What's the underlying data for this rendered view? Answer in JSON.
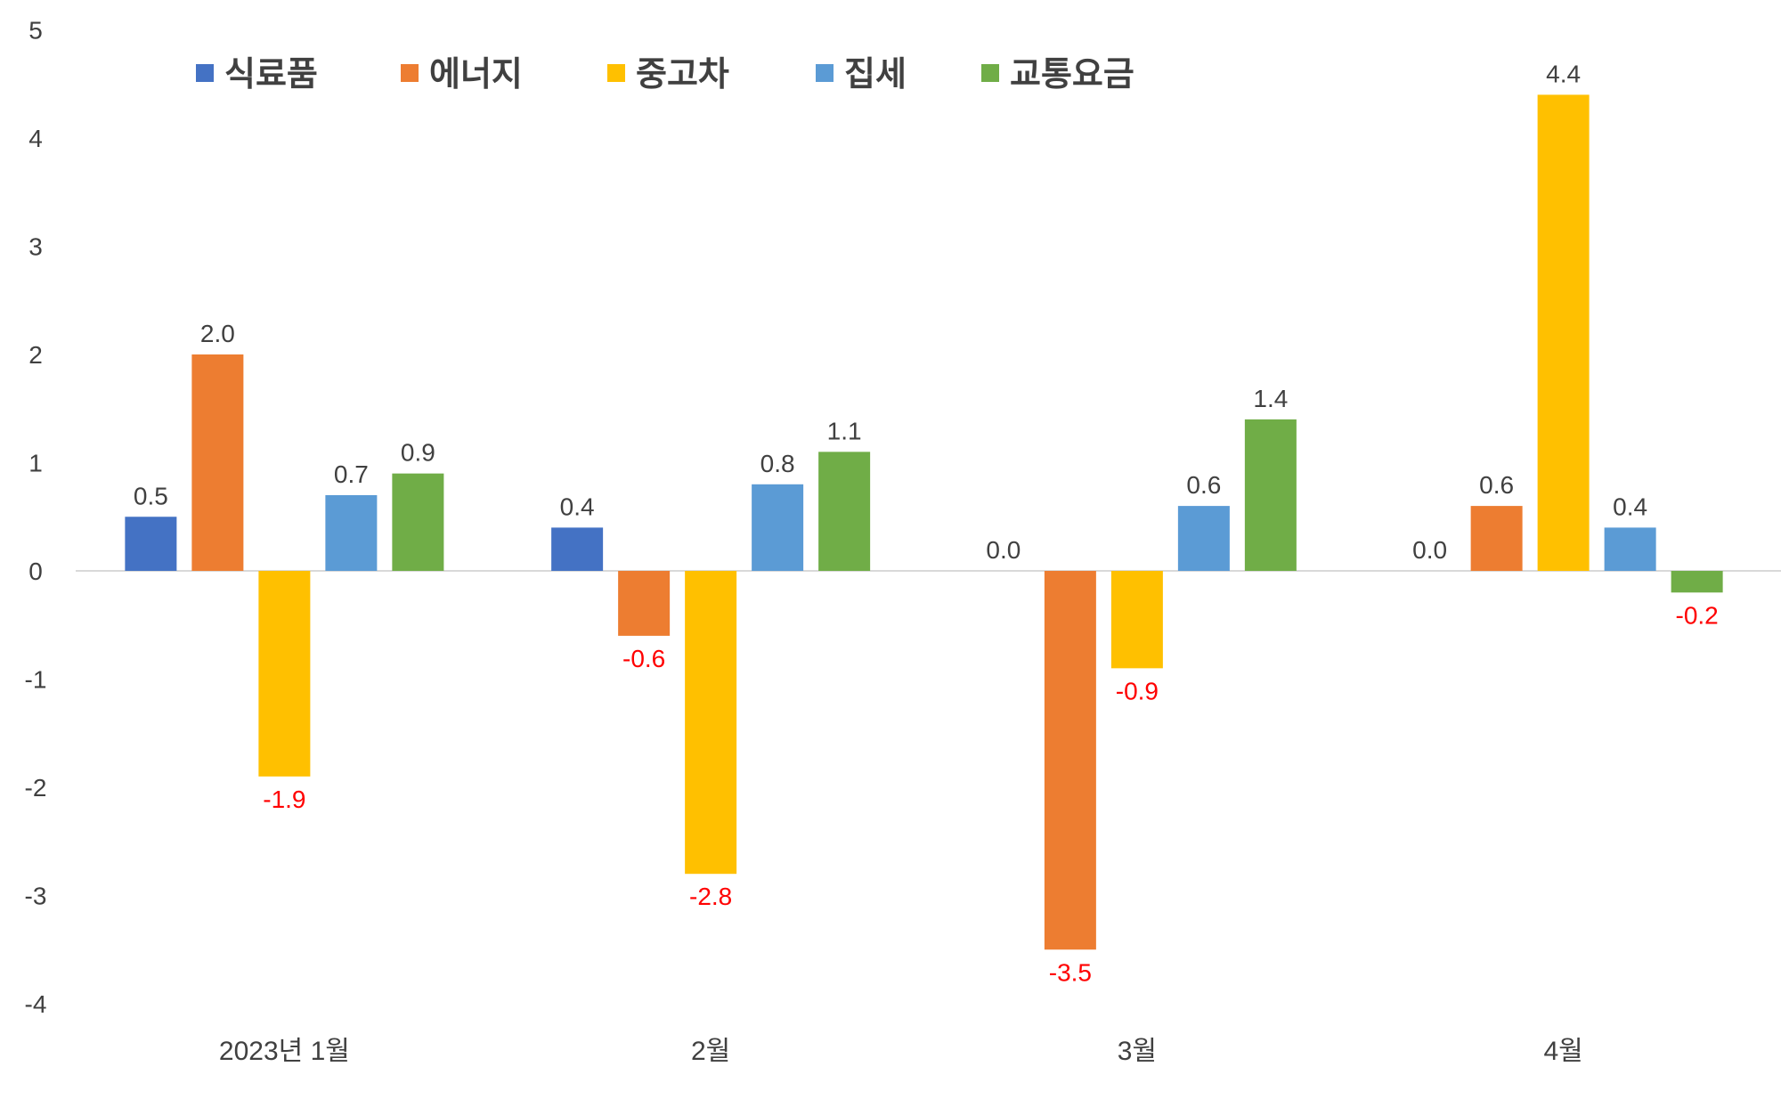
{
  "chart_data": {
    "type": "bar",
    "categories": [
      "2023년 1월",
      "2월",
      "3월",
      "4월"
    ],
    "series": [
      {
        "name": "식료품",
        "color": "#4472C4",
        "values": [
          0.5,
          0.4,
          0.0,
          0.0
        ]
      },
      {
        "name": "에너지",
        "color": "#ED7D31",
        "values": [
          2.0,
          -0.6,
          -3.5,
          0.6
        ]
      },
      {
        "name": "중고차",
        "color": "#FFC000",
        "values": [
          -1.9,
          -2.8,
          -0.9,
          4.4
        ]
      },
      {
        "name": "집세",
        "color": "#5B9BD5",
        "values": [
          0.7,
          0.8,
          0.6,
          0.4
        ]
      },
      {
        "name": "교통요금",
        "color": "#70AD47",
        "values": [
          0.9,
          1.1,
          1.4,
          -0.2
        ]
      }
    ],
    "data_labels": [
      [
        "0.5",
        "0.4",
        "0.0",
        "0.0"
      ],
      [
        "2.0",
        "-0.6",
        "-3.5",
        "0.6"
      ],
      [
        "-1.9",
        "-2.8",
        "-0.9",
        "4.4"
      ],
      [
        "0.7",
        "0.8",
        "0.6",
        "0.4"
      ],
      [
        "0.9",
        "1.1",
        "1.4",
        "-0.2"
      ]
    ],
    "yticks": [
      "5",
      "4",
      "3",
      "2",
      "1",
      "0",
      "-1",
      "-2",
      "-3",
      "-4"
    ],
    "ylim": [
      -4,
      5
    ],
    "legend_position": "top",
    "negative_label_color": "#FF0000",
    "positive_label_color": "#404040",
    "grid": false
  }
}
